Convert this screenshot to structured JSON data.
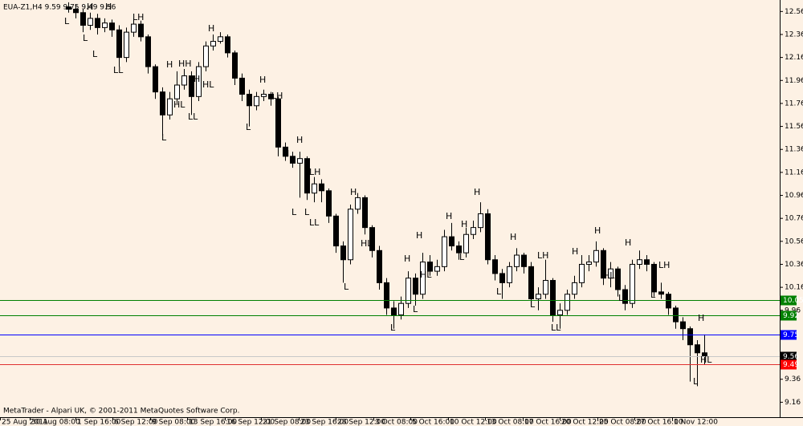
{
  "chart_data": {
    "type": "candlestick",
    "title": "EUA-Z1,H4  9.59 9.75 9.49 9.56",
    "footer": "MetaTrader - Alpari UK, © 2001-2011 MetaQuotes Software Corp.",
    "ylim": [
      9.03,
      12.66
    ],
    "yticks": [
      12.56,
      12.36,
      12.16,
      11.96,
      11.76,
      11.56,
      11.36,
      11.16,
      10.96,
      10.76,
      10.56,
      10.36,
      10.16,
      9.96,
      9.36,
      9.16
    ],
    "x_labels": [
      "25 Aug 2011",
      "30 Aug 08:00",
      "1 Sep 16:00",
      "6 Sep 12:00",
      "9 Sep 08:00",
      "13 Sep 16:00",
      "16 Sep 12:00",
      "21 Sep 08:00",
      "23 Sep 16:00",
      "28 Sep 12:00",
      "3 Oct 08:00",
      "5 Oct 16:00",
      "10 Oct 12:00",
      "13 Oct 08:00",
      "17 Oct 16:00",
      "20 Oct 12:00",
      "25 Oct 08:00",
      "27 Oct 16:00",
      "1 Nov 12:00"
    ],
    "open": [
      12.6,
      12.58,
      12.55,
      12.44,
      12.5,
      12.42,
      12.46,
      12.4,
      12.16,
      12.38,
      12.45,
      12.34,
      12.08,
      11.86,
      11.66,
      11.8,
      11.92,
      12.0,
      11.82,
      12.08,
      12.26,
      12.3,
      12.34,
      12.2,
      11.98,
      11.84,
      11.74,
      11.82,
      11.84,
      11.8,
      11.38,
      11.3,
      11.24,
      11.28,
      10.98,
      11.06,
      11.0,
      10.78,
      10.52,
      10.4,
      10.84,
      10.94,
      10.68,
      10.48,
      10.2,
      9.98,
      9.92,
      10.02,
      10.24,
      10.1,
      10.38,
      10.3,
      10.34,
      10.6,
      10.52,
      10.46,
      10.62,
      10.68,
      10.8,
      10.4,
      10.28,
      10.2,
      10.34,
      10.44,
      10.34,
      10.06,
      10.1,
      10.22,
      9.92,
      9.96,
      10.1,
      10.2,
      10.36,
      10.38,
      10.48,
      10.24,
      10.32,
      10.14,
      10.02,
      10.36,
      10.4,
      10.36,
      10.12,
      10.1,
      9.98,
      9.86,
      9.8,
      9.66,
      9.59
    ],
    "high": [
      12.64,
      12.62,
      12.58,
      12.55,
      12.54,
      12.5,
      12.49,
      12.44,
      12.42,
      12.5,
      12.48,
      12.36,
      12.1,
      11.9,
      11.86,
      12.04,
      12.06,
      12.04,
      12.12,
      12.3,
      12.36,
      12.38,
      12.36,
      12.22,
      12.02,
      11.88,
      11.86,
      11.88,
      11.86,
      11.82,
      11.42,
      11.34,
      11.34,
      11.3,
      11.12,
      11.1,
      11.02,
      10.8,
      10.56,
      10.88,
      10.98,
      10.96,
      10.7,
      10.52,
      10.24,
      10.04,
      10.08,
      10.3,
      10.28,
      10.46,
      10.44,
      10.4,
      10.66,
      10.72,
      10.56,
      10.68,
      10.74,
      10.9,
      10.84,
      10.44,
      10.32,
      10.38,
      10.5,
      10.46,
      10.38,
      10.16,
      10.4,
      10.24,
      10.02,
      10.14,
      10.26,
      10.44,
      10.44,
      10.56,
      10.5,
      10.38,
      10.34,
      10.18,
      10.4,
      10.48,
      10.44,
      10.38,
      10.2,
      10.12,
      10.0,
      9.9,
      9.82,
      9.7,
      9.75
    ],
    "low": [
      12.55,
      12.5,
      12.38,
      12.4,
      12.36,
      12.38,
      12.34,
      12.08,
      12.12,
      12.34,
      12.3,
      12.02,
      11.8,
      11.48,
      11.62,
      11.76,
      11.88,
      11.66,
      11.78,
      12.04,
      12.22,
      12.28,
      12.16,
      11.92,
      11.78,
      11.56,
      11.7,
      11.78,
      11.74,
      11.3,
      11.26,
      11.2,
      10.94,
      10.92,
      10.9,
      10.9,
      10.72,
      10.46,
      10.2,
      10.36,
      10.8,
      10.62,
      10.42,
      10.14,
      9.92,
      9.8,
      9.88,
      9.98,
      10.0,
      10.06,
      10.26,
      10.26,
      10.3,
      10.48,
      10.4,
      10.42,
      10.58,
      10.64,
      10.36,
      10.22,
      10.06,
      10.16,
      10.3,
      10.28,
      10.0,
      9.96,
      10.06,
      9.86,
      9.8,
      9.92,
      10.06,
      10.16,
      10.3,
      10.34,
      10.18,
      10.16,
      10.08,
      9.96,
      9.98,
      10.32,
      10.3,
      10.08,
      10.06,
      9.92,
      9.8,
      9.7,
      9.34,
      9.3,
      9.49
    ],
    "close": [
      12.58,
      12.55,
      12.44,
      12.5,
      12.42,
      12.46,
      12.4,
      12.16,
      12.38,
      12.45,
      12.34,
      12.08,
      11.86,
      11.66,
      11.8,
      11.92,
      12.0,
      11.82,
      12.08,
      12.26,
      12.3,
      12.34,
      12.2,
      11.98,
      11.84,
      11.74,
      11.82,
      11.84,
      11.8,
      11.38,
      11.3,
      11.24,
      11.28,
      10.98,
      11.06,
      11.0,
      10.78,
      10.52,
      10.4,
      10.84,
      10.94,
      10.68,
      10.48,
      10.2,
      9.98,
      9.92,
      10.02,
      10.24,
      10.1,
      10.38,
      10.3,
      10.34,
      10.6,
      10.52,
      10.46,
      10.62,
      10.68,
      10.8,
      10.4,
      10.28,
      10.2,
      10.34,
      10.44,
      10.34,
      10.06,
      10.1,
      10.22,
      9.92,
      9.96,
      10.1,
      10.2,
      10.36,
      10.38,
      10.48,
      10.24,
      10.32,
      10.14,
      10.02,
      10.36,
      10.4,
      10.36,
      10.12,
      10.1,
      9.98,
      9.86,
      9.8,
      9.66,
      9.59,
      9.56
    ],
    "levels": [
      {
        "value": 10.05,
        "color": "#008000",
        "line_color": "#008000"
      },
      {
        "value": 9.92,
        "color": "#008000",
        "line_color": "#008000"
      },
      {
        "value": 9.75,
        "color": "#0000ff",
        "line_color": "#0000ff"
      },
      {
        "value": 9.56,
        "color": "#000000",
        "line_color": "#c8c8c8"
      },
      {
        "value": 9.49,
        "color": "#ff0000",
        "line_color": "#e03030"
      }
    ],
    "annotations": [
      "L",
      "H",
      "H",
      "L",
      "L",
      "LH",
      "LL",
      "H",
      "HH",
      "H",
      "HL",
      "HL",
      "L",
      "LL",
      "H",
      "H",
      "LH",
      "L",
      "L",
      "H",
      "H",
      "LH",
      "L",
      "L",
      "LL",
      "H",
      "HL",
      "L",
      "H",
      "H",
      "HL",
      "L",
      "L",
      "H",
      "H",
      "L",
      "H",
      "H",
      "L",
      "LH",
      "L",
      "LL",
      "H",
      "H",
      "HL",
      "H",
      "L",
      "LH",
      "L",
      "H",
      "HL",
      "L"
    ]
  }
}
